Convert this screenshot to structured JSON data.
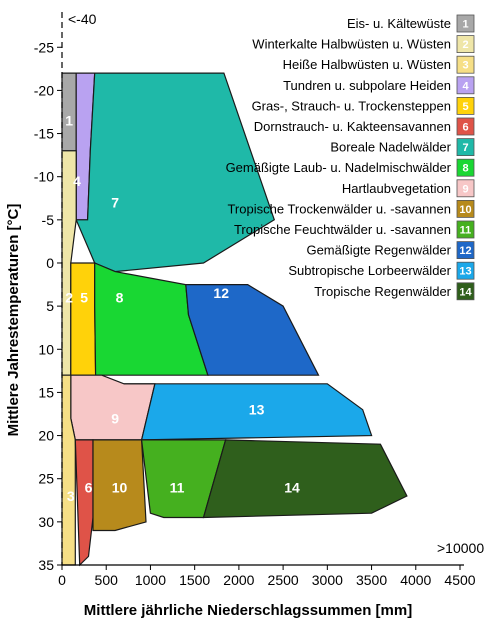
{
  "chart_data": {
    "type": "area",
    "xlabel": "Mittlere jährliche Niederschlagssummen [mm]",
    "ylabel": "Mittlere Jahrestemperaturen [°C]",
    "xlim": [
      0,
      4500
    ],
    "ylim": [
      -27,
      35
    ],
    "y_inverted": true,
    "x_ticks": [
      0,
      500,
      1000,
      1500,
      2000,
      2500,
      3000,
      3500,
      4000,
      4500
    ],
    "y_ticks": [
      -25,
      -20,
      -15,
      -10,
      -5,
      0,
      5,
      10,
      15,
      20,
      25,
      30,
      35
    ],
    "top_edge_label": "<-40",
    "right_edge_label": ">10000",
    "legend_placement": "top-right",
    "biomes": [
      {
        "id": "1",
        "name": "Eis- u. Kältewüste",
        "color": "#a8a8a8"
      },
      {
        "id": "2",
        "name": "Winterkalte Halbwüsten u. Wüsten",
        "color": "#efe6a8"
      },
      {
        "id": "3",
        "name": "Heiße Halbwüsten u. Wüsten",
        "color": "#f6df86"
      },
      {
        "id": "4",
        "name": "Tundren u. subpolare Heiden",
        "color": "#b9a2f1"
      },
      {
        "id": "5",
        "name": "Gras-, Strauch- u. Trockensteppen",
        "color": "#ffd20a"
      },
      {
        "id": "6",
        "name": "Dornstrauch- u. Kakteensavannen",
        "color": "#df5348"
      },
      {
        "id": "7",
        "name": "Boreale Nadelwälder",
        "color": "#1fb9a8"
      },
      {
        "id": "8",
        "name": "Gemäßigte Laub- u. Nadelmischwälder",
        "color": "#19d733"
      },
      {
        "id": "9",
        "name": "Hartlaubvegetation",
        "color": "#f7c7c7"
      },
      {
        "id": "10",
        "name": "Tropische Trockenwälder u. -savannen",
        "color": "#b78a1c"
      },
      {
        "id": "11",
        "name": "Tropische Feuchtwälder u. -savannen",
        "color": "#45b01f"
      },
      {
        "id": "12",
        "name": "Gemäßigte Regenwälder",
        "color": "#1e68c8"
      },
      {
        "id": "13",
        "name": "Subtropische Lorbeerwälder",
        "color": "#1ba8ea"
      },
      {
        "id": "14",
        "name": "Tropische Regenwälder",
        "color": "#2f5f1c"
      }
    ],
    "regions": [
      {
        "id": "1",
        "polygon": [
          [
            0,
            -22
          ],
          [
            160,
            -22
          ],
          [
            160,
            -13
          ],
          [
            0,
            -13
          ]
        ],
        "label_at": [
          80,
          -16.5
        ]
      },
      {
        "id": "4",
        "polygon": [
          [
            160,
            -22
          ],
          [
            370,
            -22
          ],
          [
            320,
            -13
          ],
          [
            290,
            -5
          ],
          [
            160,
            -5
          ]
        ],
        "label_at": [
          170,
          -9.5
        ]
      },
      {
        "id": "7",
        "polygon": [
          [
            370,
            -22
          ],
          [
            1830,
            -22
          ],
          [
            2400,
            -5
          ],
          [
            1600,
            0
          ],
          [
            600,
            1
          ],
          [
            370,
            0
          ],
          [
            160,
            -5
          ],
          [
            290,
            -5
          ],
          [
            320,
            -13
          ]
        ],
        "label_at": [
          600,
          -7
        ]
      },
      {
        "id": "2",
        "polygon": [
          [
            0,
            -13
          ],
          [
            160,
            -13
          ],
          [
            160,
            -5
          ],
          [
            100,
            0
          ],
          [
            100,
            13
          ],
          [
            0,
            13
          ]
        ],
        "label_at": [
          80,
          4
        ]
      },
      {
        "id": "5",
        "polygon": [
          [
            100,
            0
          ],
          [
            370,
            0
          ],
          [
            370,
            5
          ],
          [
            380,
            13
          ],
          [
            100,
            13
          ]
        ],
        "label_at": [
          250,
          4
        ]
      },
      {
        "id": "8",
        "polygon": [
          [
            370,
            0
          ],
          [
            600,
            1
          ],
          [
            1400,
            2.5
          ],
          [
            1430,
            6
          ],
          [
            1650,
            13
          ],
          [
            380,
            13
          ],
          [
            370,
            5
          ]
        ],
        "label_at": [
          650,
          4
        ]
      },
      {
        "id": "12",
        "polygon": [
          [
            1400,
            2.5
          ],
          [
            2100,
            2.5
          ],
          [
            2500,
            5
          ],
          [
            2900,
            13
          ],
          [
            1650,
            13
          ],
          [
            1430,
            6
          ]
        ],
        "label_at": [
          1800,
          3.5
        ]
      },
      {
        "id": "9",
        "polygon": [
          [
            100,
            13
          ],
          [
            450,
            13
          ],
          [
            700,
            14
          ],
          [
            1050,
            14
          ],
          [
            900,
            20.5
          ],
          [
            350,
            20.5
          ],
          [
            150,
            20.5
          ],
          [
            100,
            18
          ]
        ],
        "label_at": [
          600,
          18
        ]
      },
      {
        "id": "13",
        "polygon": [
          [
            700,
            14
          ],
          [
            3000,
            14
          ],
          [
            3400,
            17
          ],
          [
            3500,
            20
          ],
          [
            900,
            20.5
          ],
          [
            1050,
            14
          ]
        ],
        "label_at": [
          2200,
          17
        ]
      },
      {
        "id": "3",
        "polygon": [
          [
            0,
            13
          ],
          [
            100,
            13
          ],
          [
            100,
            18
          ],
          [
            150,
            20.5
          ],
          [
            150,
            35
          ],
          [
            0,
            35
          ]
        ],
        "label_at": [
          100,
          27
        ]
      },
      {
        "id": "6",
        "polygon": [
          [
            150,
            20.5
          ],
          [
            350,
            20.5
          ],
          [
            350,
            29.5
          ],
          [
            300,
            34
          ],
          [
            200,
            35
          ]
        ],
        "label_at": [
          300,
          26
        ]
      },
      {
        "id": "10",
        "polygon": [
          [
            350,
            20.5
          ],
          [
            900,
            20.5
          ],
          [
            950,
            30
          ],
          [
            600,
            31
          ],
          [
            350,
            31
          ]
        ],
        "label_at": [
          650,
          26
        ]
      },
      {
        "id": "11",
        "polygon": [
          [
            900,
            20.5
          ],
          [
            1850,
            20.5
          ],
          [
            1600,
            29.5
          ],
          [
            1150,
            29.5
          ],
          [
            1000,
            29
          ]
        ],
        "label_at": [
          1300,
          26
        ]
      },
      {
        "id": "14",
        "polygon": [
          [
            1850,
            20.5
          ],
          [
            3600,
            21
          ],
          [
            3900,
            27
          ],
          [
            3500,
            29
          ],
          [
            1600,
            29.5
          ]
        ],
        "label_at": [
          2600,
          26
        ]
      }
    ]
  }
}
